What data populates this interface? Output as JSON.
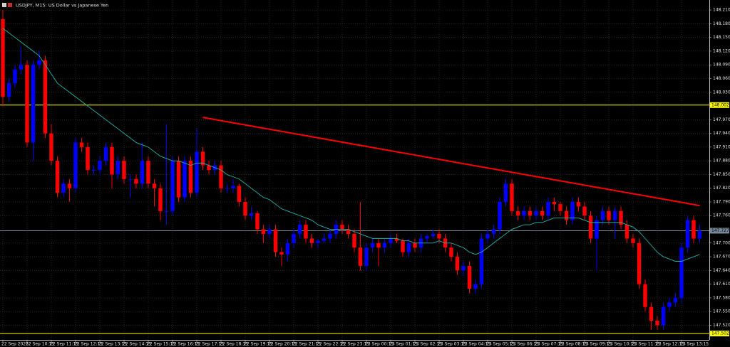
{
  "chart_data": {
    "type": "candlestick",
    "title": "USDJPY, M15:  US Dollar vs Japanese Yen",
    "up_color": "#0000ff",
    "down_color": "#ff0000",
    "grid": true,
    "ylim": [
      147.488,
      148.232
    ],
    "yticks": [
      {
        "value": 148.21,
        "label": "148.210"
      },
      {
        "value": 148.18,
        "label": "148.180"
      },
      {
        "value": 148.15,
        "label": "148.150"
      },
      {
        "value": 148.12,
        "label": "148.120"
      },
      {
        "value": 148.09,
        "label": "148.090"
      },
      {
        "value": 148.06,
        "label": "148.060"
      },
      {
        "value": 148.03,
        "label": "148.030"
      },
      {
        "value": 147.97,
        "label": "147.970"
      },
      {
        "value": 147.94,
        "label": "147.940"
      },
      {
        "value": 147.91,
        "label": "147.910"
      },
      {
        "value": 147.88,
        "label": "147.880"
      },
      {
        "value": 147.85,
        "label": "147.850"
      },
      {
        "value": 147.82,
        "label": "147.820"
      },
      {
        "value": 147.79,
        "label": "147.790"
      },
      {
        "value": 147.76,
        "label": "147.760"
      },
      {
        "value": 147.7,
        "label": "147.700"
      },
      {
        "value": 147.67,
        "label": "147.670"
      },
      {
        "value": 147.64,
        "label": "147.640"
      },
      {
        "value": 147.61,
        "label": "147.610"
      },
      {
        "value": 147.58,
        "label": "147.580"
      },
      {
        "value": 147.55,
        "label": "147.550"
      },
      {
        "value": 147.52,
        "label": "147.520"
      }
    ],
    "categories": [
      "22 Sep 2025",
      null,
      null,
      null,
      "22 Sep 10:15",
      null,
      null,
      null,
      "22 Sep 11:15",
      null,
      null,
      null,
      "22 Sep 12:15",
      null,
      null,
      null,
      "22 Sep 13:15",
      null,
      null,
      null,
      "22 Sep 14:15",
      null,
      null,
      null,
      "22 Sep 15:15",
      null,
      null,
      null,
      "22 Sep 16:15",
      null,
      null,
      null,
      "22 Sep 17:15",
      null,
      null,
      null,
      "22 Sep 18:15",
      null,
      null,
      null,
      "22 Sep 19:15",
      null,
      null,
      null,
      "22 Sep 20:15",
      null,
      null,
      null,
      "22 Sep 21:15",
      null,
      null,
      null,
      "22 Sep 22:15",
      null,
      null,
      null,
      "22 Sep 23:15",
      null,
      null,
      null,
      "23 Sep 00:15",
      null,
      null,
      null,
      "23 Sep 01:15",
      null,
      null,
      null,
      "23 Sep 02:15",
      null,
      null,
      null,
      "23 Sep 03:15",
      null,
      null,
      null,
      "23 Sep 04:15",
      null,
      null,
      null,
      "23 Sep 05:15",
      null,
      null,
      null,
      "23 Sep 06:15",
      null,
      null,
      null,
      "23 Sep 07:15",
      null,
      null,
      null,
      "23 Sep 08:15",
      null,
      null,
      null,
      "23 Sep 09:15",
      null,
      null,
      null,
      "23 Sep 10:15",
      null,
      null,
      null,
      "23 Sep 11:15",
      null,
      null,
      null,
      "23 Sep 12:15",
      null,
      null,
      null,
      "23 Sep 13:15",
      null,
      null,
      null
    ],
    "series": [
      {
        "open": [
          148.19,
          148.02,
          148.05,
          148.08,
          148.09,
          147.92,
          148.09,
          148.1,
          147.94,
          147.88,
          147.81,
          147.83,
          147.82,
          147.92,
          147.91,
          147.86,
          147.86,
          147.88,
          147.91,
          147.85,
          147.88,
          147.84,
          147.84,
          147.83,
          147.88,
          147.83,
          147.82,
          147.77,
          147.77,
          147.88,
          147.8,
          147.88,
          147.81,
          147.9,
          147.87,
          147.86,
          147.87,
          147.82,
          147.82,
          147.825,
          147.79,
          147.76,
          147.765,
          147.73,
          147.72,
          147.73,
          147.68,
          147.675,
          147.7,
          147.72,
          147.74,
          147.71,
          147.7,
          147.705,
          147.71,
          147.72,
          147.74,
          147.73,
          147.72,
          147.69,
          147.65,
          147.69,
          147.7,
          147.69,
          147.7,
          147.71,
          147.705,
          147.68,
          147.7,
          147.69,
          147.71,
          147.715,
          147.72,
          147.71,
          147.69,
          147.67,
          147.64,
          147.65,
          147.6,
          147.61,
          147.71,
          147.72,
          147.73,
          147.79,
          147.83,
          147.77,
          147.76,
          147.77,
          147.76,
          147.77,
          147.76,
          147.79,
          147.785,
          147.77,
          147.75,
          147.79,
          147.78,
          147.76,
          147.71,
          147.75,
          147.77,
          147.75,
          147.77,
          147.74,
          147.71,
          147.7,
          147.61,
          147.56,
          147.53,
          147.52,
          147.56,
          147.57,
          147.58,
          147.69,
          147.75,
          147.71
        ],
        "high": [
          148.21,
          148.06,
          148.09,
          148.13,
          148.1,
          148.1,
          148.12,
          148.11,
          147.96,
          147.89,
          147.84,
          147.84,
          147.93,
          147.93,
          147.92,
          147.87,
          147.89,
          147.92,
          147.92,
          147.89,
          147.89,
          147.85,
          147.85,
          147.92,
          147.89,
          147.84,
          147.83,
          147.96,
          147.89,
          147.89,
          147.89,
          147.89,
          147.95,
          147.91,
          147.88,
          147.88,
          147.88,
          147.83,
          147.84,
          147.83,
          147.8,
          147.78,
          147.77,
          147.74,
          147.74,
          147.74,
          147.69,
          147.71,
          147.73,
          147.75,
          147.75,
          147.72,
          147.71,
          147.72,
          147.73,
          147.75,
          147.75,
          147.74,
          147.73,
          147.79,
          147.7,
          147.71,
          147.71,
          147.71,
          147.72,
          147.72,
          147.71,
          147.71,
          147.71,
          147.72,
          147.72,
          147.73,
          147.73,
          147.72,
          147.7,
          147.68,
          147.66,
          147.66,
          147.62,
          147.72,
          147.73,
          147.74,
          147.8,
          147.84,
          147.84,
          147.78,
          147.78,
          147.78,
          147.78,
          147.78,
          147.8,
          147.8,
          147.79,
          147.78,
          147.8,
          147.8,
          147.79,
          147.77,
          147.76,
          147.78,
          147.78,
          147.78,
          147.78,
          147.75,
          147.72,
          147.71,
          147.62,
          147.57,
          147.54,
          147.57,
          147.58,
          147.59,
          147.7,
          147.76,
          147.76,
          147.74
        ],
        "low": [
          148.0,
          148.01,
          148.04,
          148.07,
          147.91,
          147.88,
          148.08,
          147.93,
          147.87,
          147.8,
          147.8,
          147.79,
          147.81,
          147.9,
          147.85,
          147.85,
          147.85,
          147.87,
          147.82,
          147.84,
          147.83,
          147.8,
          147.82,
          147.82,
          147.82,
          147.78,
          147.75,
          147.74,
          147.76,
          147.79,
          147.79,
          147.8,
          147.8,
          147.86,
          147.85,
          147.85,
          147.81,
          147.81,
          147.81,
          147.78,
          147.75,
          147.75,
          147.72,
          147.7,
          147.71,
          147.67,
          147.65,
          147.66,
          147.69,
          147.71,
          147.7,
          147.69,
          147.69,
          147.7,
          147.7,
          147.71,
          147.72,
          147.71,
          147.68,
          147.64,
          147.64,
          147.68,
          147.65,
          147.68,
          147.69,
          147.7,
          147.67,
          147.67,
          147.68,
          147.68,
          147.7,
          147.71,
          147.7,
          147.68,
          147.66,
          147.63,
          147.63,
          147.59,
          147.59,
          147.6,
          147.7,
          147.71,
          147.72,
          147.78,
          147.76,
          147.75,
          147.75,
          147.75,
          147.75,
          147.75,
          147.75,
          147.77,
          147.76,
          147.74,
          147.74,
          147.77,
          147.75,
          147.7,
          147.64,
          147.74,
          147.74,
          147.71,
          147.73,
          147.7,
          147.69,
          147.6,
          147.55,
          147.51,
          147.51,
          147.51,
          147.55,
          147.56,
          147.57,
          147.68,
          147.7,
          147.7
        ],
        "close": [
          148.02,
          148.05,
          148.08,
          148.09,
          147.92,
          148.09,
          148.1,
          147.94,
          147.88,
          147.81,
          147.83,
          147.82,
          147.92,
          147.91,
          147.86,
          147.86,
          147.88,
          147.91,
          147.85,
          147.88,
          147.84,
          147.84,
          147.83,
          147.88,
          147.83,
          147.82,
          147.77,
          147.77,
          147.88,
          147.8,
          147.88,
          147.81,
          147.9,
          147.87,
          147.86,
          147.87,
          147.82,
          147.82,
          147.825,
          147.79,
          147.76,
          147.765,
          147.73,
          147.72,
          147.73,
          147.68,
          147.675,
          147.7,
          147.72,
          147.74,
          147.71,
          147.7,
          147.705,
          147.71,
          147.72,
          147.74,
          147.73,
          147.72,
          147.69,
          147.65,
          147.69,
          147.7,
          147.69,
          147.7,
          147.71,
          147.705,
          147.68,
          147.7,
          147.69,
          147.71,
          147.715,
          147.72,
          147.71,
          147.69,
          147.67,
          147.64,
          147.65,
          147.6,
          147.61,
          147.71,
          147.72,
          147.73,
          147.79,
          147.83,
          147.77,
          147.76,
          147.77,
          147.76,
          147.77,
          147.76,
          147.79,
          147.785,
          147.77,
          147.75,
          147.79,
          147.78,
          147.76,
          147.71,
          147.75,
          147.77,
          147.75,
          147.77,
          147.74,
          147.71,
          147.7,
          147.61,
          147.56,
          147.53,
          147.52,
          147.56,
          147.57,
          147.58,
          147.69,
          147.75,
          147.71,
          147.727
        ]
      }
    ],
    "ma": {
      "color": "#20b2aa",
      "values": [
        148.17,
        148.16,
        148.15,
        148.14,
        148.13,
        148.12,
        148.11,
        148.09,
        148.07,
        148.05,
        148.04,
        148.03,
        148.02,
        148.01,
        148.0,
        147.99,
        147.98,
        147.97,
        147.96,
        147.95,
        147.94,
        147.93,
        147.92,
        147.915,
        147.91,
        147.9,
        147.89,
        147.885,
        147.88,
        147.88,
        147.875,
        147.87,
        147.875,
        147.875,
        147.87,
        147.865,
        147.86,
        147.85,
        147.845,
        147.84,
        147.83,
        147.82,
        147.81,
        147.8,
        147.795,
        147.785,
        147.775,
        147.77,
        147.765,
        147.76,
        147.755,
        147.75,
        147.74,
        147.735,
        147.73,
        147.73,
        147.73,
        147.73,
        147.725,
        147.72,
        147.715,
        147.71,
        147.71,
        147.71,
        147.71,
        147.71,
        147.705,
        147.705,
        147.7,
        147.7,
        147.7,
        147.7,
        147.705,
        147.7,
        147.7,
        147.695,
        147.69,
        147.68,
        147.675,
        147.68,
        147.69,
        147.7,
        147.71,
        147.72,
        147.73,
        147.735,
        147.74,
        147.74,
        147.745,
        147.745,
        147.75,
        147.755,
        147.755,
        147.755,
        147.755,
        147.755,
        147.75,
        147.745,
        147.745,
        147.745,
        147.745,
        147.745,
        147.745,
        147.74,
        147.735,
        147.725,
        147.71,
        147.695,
        147.68,
        147.67,
        147.665,
        147.66,
        147.66,
        147.665,
        147.67,
        147.675
      ]
    },
    "trendline": {
      "color": "#ff0000",
      "from": [
        33,
        147.975
      ],
      "to": [
        115,
        147.782
      ]
    },
    "hlines": [
      {
        "value": 148.002,
        "color": "#ffff00"
      },
      {
        "value": 147.502,
        "color": "#ffff00"
      },
      {
        "value": 147.727,
        "color": "#778899"
      }
    ]
  }
}
